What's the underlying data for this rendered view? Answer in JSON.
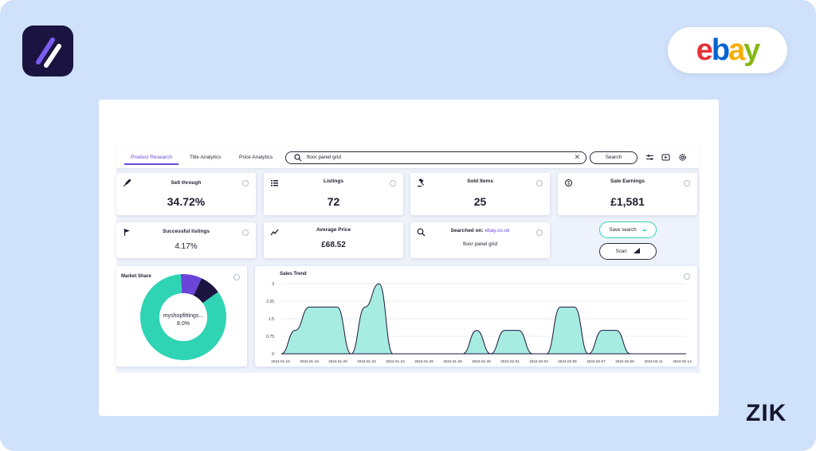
{
  "brand": {
    "marketplace_logo": "ebay",
    "zik_label": "ZIK",
    "ebay_colors": [
      "#e53238",
      "#0064d2",
      "#f5af02",
      "#86b817"
    ]
  },
  "tabs": [
    {
      "label": "Product Research",
      "active": true
    },
    {
      "label": "Title Analytics",
      "active": false
    },
    {
      "label": "Price Analytics",
      "active": false
    }
  ],
  "search": {
    "value": "floor panel grid",
    "button_label": "Search"
  },
  "toolbar_icons": [
    "sliders-icon",
    "video-icon",
    "gear-icon"
  ],
  "stats_row1": [
    {
      "title": "Sell through",
      "value": "34.72%",
      "icon": "rocket-icon"
    },
    {
      "title": "Listings",
      "value": "72",
      "icon": "list-icon"
    },
    {
      "title": "Sold Items",
      "value": "25",
      "icon": "gavel-icon"
    },
    {
      "title": "Sale Earnings",
      "value": "£1,581",
      "icon": "coin-icon"
    }
  ],
  "stats_row2": [
    {
      "title": "Successful listings",
      "value": "4.17%",
      "icon": "flag-icon"
    },
    {
      "title": "Average Price",
      "value": "£68.52",
      "icon": "trend-icon"
    }
  ],
  "searched_on": {
    "label": "Searched on:",
    "site": "ebay.co.uk",
    "query": "floor panel grid"
  },
  "actions": {
    "save_search": "Save search",
    "scan": "Scan"
  },
  "market_share": {
    "title": "Market Share",
    "center_name": "myshopfittings...",
    "center_value": "8.0%"
  },
  "colors": {
    "accent": "#6a45d8",
    "teal": "#2fd4b4",
    "navy": "#1b1440",
    "teal_light": "#a7ece0"
  },
  "chart_data": [
    {
      "type": "pie",
      "title": "Market Share",
      "slices": [
        {
          "name": "myshopfittings...",
          "value": 8.0,
          "color": "#6a45d8"
        },
        {
          "name": "",
          "value": 8.0,
          "color": "#1b1440"
        },
        {
          "name": "",
          "value": 84.0,
          "color": "#2fd4b4"
        }
      ]
    },
    {
      "type": "area",
      "title": "Sales Trend",
      "yticks": [
        "0",
        "0.75",
        "1.5",
        "2.25",
        "3"
      ],
      "ylim": [
        0,
        3
      ],
      "xticks": [
        "2024-01-16",
        "2024-01-18",
        "2024-01-20",
        "2024-01-22",
        "2024-01-24",
        "2024-01-26",
        "2024-01-28",
        "2024-01-30",
        "2024-02-01",
        "2024-02-03",
        "2024-02-05",
        "2024-02-07",
        "2024-02-09",
        "2024-02-11",
        "2024-02-14"
      ],
      "series": [
        {
          "values": [
            0,
            1,
            2,
            2,
            2,
            0,
            2,
            3,
            0,
            0,
            0,
            0,
            0,
            0,
            1,
            0,
            1,
            1,
            0,
            0,
            2,
            2,
            0,
            1,
            1,
            0,
            0,
            0,
            0,
            0
          ]
        }
      ]
    }
  ]
}
